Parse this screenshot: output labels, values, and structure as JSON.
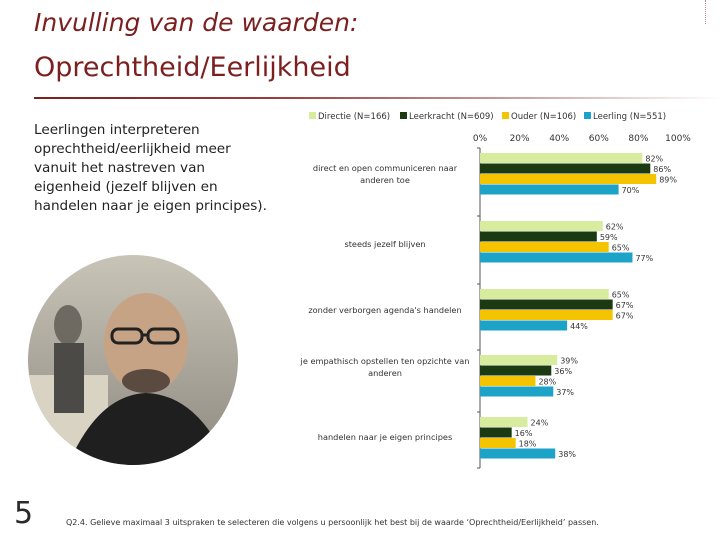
{
  "slide": {
    "title_line1": "Invulling van de waarden:",
    "title_line2": "Oprechtheid/Eerlijkheid",
    "intro_text": "Leerlingen interpreteren oprechtheid/eerlijkheid meer vanuit het nastreven van eigenheid (jezelf blijven en handelen naar je eigen principes).",
    "page_number": "5",
    "question_note": "Q2.4. Gelieve maximaal 3 uitspraken te selecteren die volgens u persoonlijk het best bij de waarde ‘Oprechtheid/Eerlijkheid’ passen."
  },
  "colors": {
    "title": "#7b1f1f",
    "directie": "#d7ec9e",
    "leerkracht": "#1c3a12",
    "ouder": "#f5c400",
    "leerling": "#1ea3c8"
  },
  "chart_data": {
    "type": "bar",
    "orientation": "horizontal",
    "categories": [
      "direct en open communiceren naar anderen toe",
      "steeds jezelf blijven",
      "zonder verborgen agenda's handelen",
      "je empathisch opstellen ten opzichte van anderen",
      "handelen naar je eigen principes"
    ],
    "series": [
      {
        "name": "Directie (N=166)",
        "values": [
          82,
          62,
          65,
          39,
          24
        ],
        "labels": [
          "82%",
          "62%",
          "65%",
          "39%",
          "24%"
        ]
      },
      {
        "name": "Leerkracht (N=609)",
        "values": [
          86,
          59,
          67,
          36,
          16
        ],
        "labels": [
          "86%",
          "59%",
          "67%",
          "36%",
          "16%"
        ]
      },
      {
        "name": "Ouder (N=106)",
        "values": [
          89,
          65,
          67,
          28,
          18
        ],
        "labels": [
          "89%",
          "65%",
          "67%",
          "28%",
          "18%"
        ]
      },
      {
        "name": "Leerling (N=551)",
        "values": [
          70,
          77,
          44,
          37,
          38
        ],
        "labels": [
          "70%",
          "77%",
          "44%",
          "37%",
          "38%"
        ]
      }
    ],
    "xlim": [
      0,
      100
    ],
    "x_ticks": [
      "0%",
      "20%",
      "40%",
      "60%",
      "80%",
      "100%"
    ],
    "legend_position": "top"
  }
}
